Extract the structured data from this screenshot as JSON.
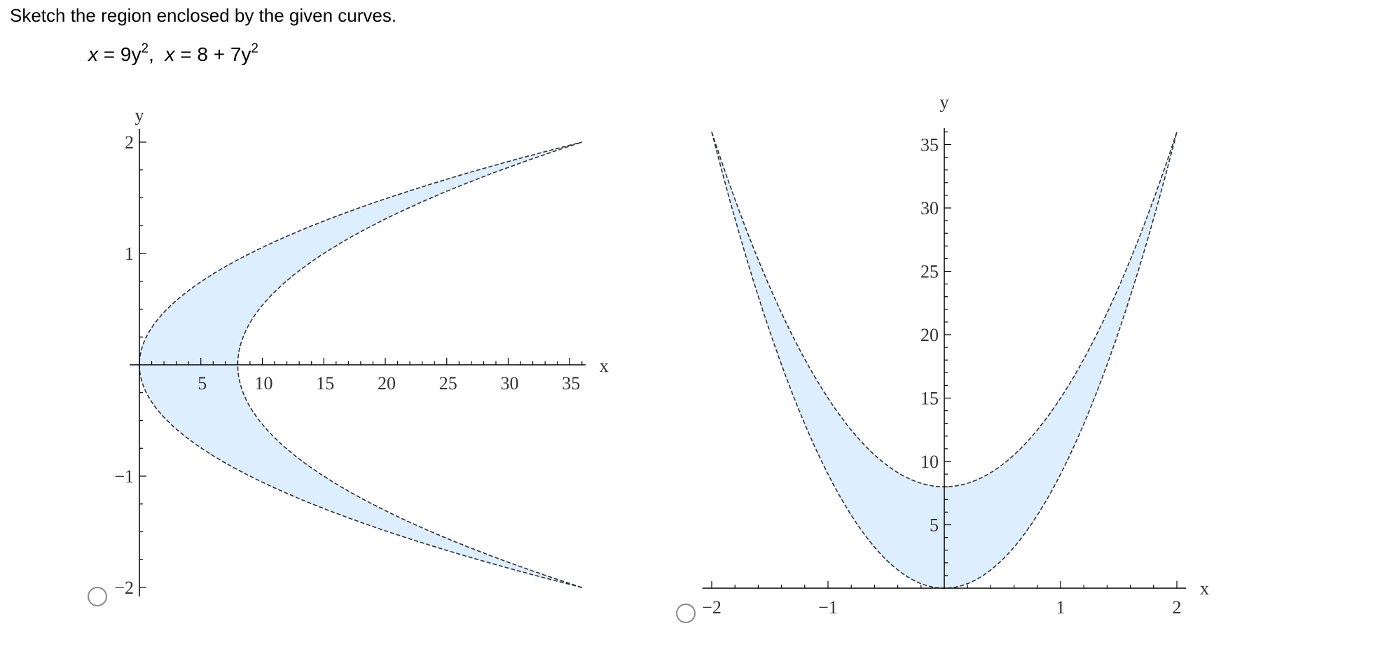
{
  "question": {
    "prompt": "Sketch the region enclosed by the given curves.",
    "eq1_lhs": "x",
    "eq1_rhs": "9y",
    "eq2_lhs": "x",
    "eq2_rhs": "8 + 7y",
    "exponent": "2"
  },
  "options": [
    {
      "id": "A",
      "selected": false
    },
    {
      "id": "B",
      "selected": false
    }
  ],
  "colors": {
    "region_fill": "#ddeeff",
    "curve": "#333333",
    "axis": "#000000"
  },
  "chart_data": [
    {
      "type": "area",
      "curves": [
        "x = 9y^2",
        "x = 8 + 7y^2"
      ],
      "curve_style": "dashed",
      "region_between": "curves, -2 <= y <= 2",
      "xlabel": "x",
      "ylabel": "y",
      "xlim": [
        0,
        36
      ],
      "ylim": [
        -2,
        2
      ],
      "xticks": [
        5,
        10,
        15,
        20,
        25,
        30,
        35
      ],
      "xtick_labels": [
        "5",
        "10",
        "15",
        "20",
        "25",
        "30",
        "35"
      ],
      "yticks": [
        -2,
        -1,
        1,
        2
      ],
      "ytick_labels": [
        "−2",
        "−1",
        "1",
        "2"
      ]
    },
    {
      "type": "area",
      "curves": [
        "y = 9x^2",
        "y = 8 + 7x^2"
      ],
      "curve_style": "dashed",
      "region_between": "curves, -2 <= x <= 2",
      "xlabel": "x",
      "ylabel": "y",
      "xlim": [
        -2,
        2
      ],
      "ylim": [
        0,
        36
      ],
      "xticks": [
        -2,
        -1,
        1,
        2
      ],
      "xtick_labels": [
        "−2",
        "−1",
        "1",
        "2"
      ],
      "yticks": [
        5,
        10,
        15,
        20,
        25,
        30,
        35
      ],
      "ytick_labels": [
        "5",
        "10",
        "15",
        "20",
        "25",
        "30",
        "35"
      ]
    }
  ]
}
